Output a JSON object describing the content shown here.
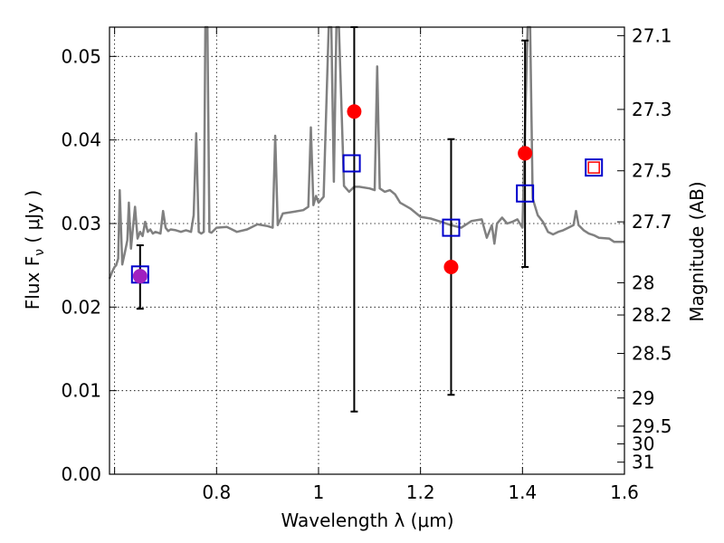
{
  "chart_data": {
    "type": "scatter",
    "xlabel": "Wavelength  λ (μm)",
    "ylabel": "Flux  F",
    "ylabel_sub": "ν",
    "ylabel_unit": "  ( μJy )",
    "y2label": "Magnitude (AB)",
    "xlim": [
      0.59,
      1.6
    ],
    "ylim": [
      0.0,
      0.0535
    ],
    "grid": true,
    "x_ticks": [
      {
        "value": 0.6,
        "label": ""
      },
      {
        "value": 0.8,
        "label": "0.8"
      },
      {
        "value": 1.0,
        "label": "1"
      },
      {
        "value": 1.2,
        "label": "1.2"
      },
      {
        "value": 1.4,
        "label": "1.4"
      },
      {
        "value": 1.6,
        "label": "1.6"
      }
    ],
    "y_ticks": [
      {
        "value": 0.0,
        "label": "0.00"
      },
      {
        "value": 0.01,
        "label": "0.01"
      },
      {
        "value": 0.02,
        "label": "0.02"
      },
      {
        "value": 0.03,
        "label": "0.03"
      },
      {
        "value": 0.04,
        "label": "0.04"
      },
      {
        "value": 0.05,
        "label": "0.05"
      }
    ],
    "y2_ticks": [
      {
        "mag": 27.1,
        "label": "27.1"
      },
      {
        "mag": 27.3,
        "label": "27.3"
      },
      {
        "mag": 27.5,
        "label": "27.5"
      },
      {
        "mag": 27.7,
        "label": "27.7"
      },
      {
        "mag": 28.0,
        "label": "28"
      },
      {
        "mag": 28.2,
        "label": "28.2"
      },
      {
        "mag": 28.5,
        "label": "28.5"
      },
      {
        "mag": 29.0,
        "label": "29"
      },
      {
        "mag": 29.5,
        "label": "29.5"
      },
      {
        "mag": 30.0,
        "label": "30"
      },
      {
        "mag": 31.0,
        "label": "31"
      }
    ],
    "colors": {
      "spectrum": "#808080",
      "observed": "#ff0000",
      "model": "#0000cc",
      "errorbar": "#000000",
      "overlap": "#a020c0"
    },
    "spectrum": {
      "x": [
        0.59,
        0.595,
        0.6,
        0.603,
        0.607,
        0.61,
        0.615,
        0.62,
        0.625,
        0.628,
        0.632,
        0.636,
        0.64,
        0.645,
        0.65,
        0.655,
        0.66,
        0.665,
        0.67,
        0.675,
        0.68,
        0.69,
        0.695,
        0.7,
        0.705,
        0.71,
        0.72,
        0.73,
        0.74,
        0.75,
        0.755,
        0.76,
        0.765,
        0.77,
        0.775,
        0.778,
        0.782,
        0.786,
        0.79,
        0.8,
        0.82,
        0.84,
        0.86,
        0.88,
        0.9,
        0.91,
        0.915,
        0.92,
        0.925,
        0.93,
        0.95,
        0.97,
        0.98,
        0.985,
        0.99,
        0.995,
        1.0,
        1.01,
        1.02,
        1.025,
        1.03,
        1.035,
        1.04,
        1.05,
        1.06,
        1.07,
        1.08,
        1.1,
        1.11,
        1.115,
        1.12,
        1.13,
        1.14,
        1.15,
        1.16,
        1.18,
        1.2,
        1.22,
        1.24,
        1.26,
        1.28,
        1.3,
        1.32,
        1.33,
        1.34,
        1.345,
        1.35,
        1.36,
        1.37,
        1.38,
        1.39,
        1.4,
        1.41,
        1.415,
        1.42,
        1.43,
        1.44,
        1.45,
        1.46,
        1.47,
        1.48,
        1.49,
        1.5,
        1.505,
        1.51,
        1.52,
        1.53,
        1.54,
        1.55,
        1.57,
        1.58,
        1.6
      ],
      "y": [
        0.0234,
        0.0242,
        0.0248,
        0.025,
        0.0258,
        0.034,
        0.0251,
        0.0265,
        0.028,
        0.0325,
        0.027,
        0.0295,
        0.032,
        0.0282,
        0.029,
        0.0285,
        0.0302,
        0.029,
        0.0293,
        0.0288,
        0.029,
        0.0288,
        0.0315,
        0.0295,
        0.0291,
        0.0293,
        0.0292,
        0.029,
        0.0292,
        0.029,
        0.031,
        0.0408,
        0.029,
        0.0288,
        0.029,
        0.0535,
        0.0535,
        0.029,
        0.0289,
        0.0295,
        0.0296,
        0.029,
        0.0293,
        0.0299,
        0.0297,
        0.0295,
        0.0405,
        0.0298,
        0.0305,
        0.0312,
        0.0314,
        0.0316,
        0.032,
        0.0415,
        0.0322,
        0.0333,
        0.0325,
        0.0332,
        0.0535,
        0.0535,
        0.035,
        0.0535,
        0.0535,
        0.0345,
        0.0338,
        0.0344,
        0.0344,
        0.0342,
        0.034,
        0.0488,
        0.0342,
        0.0338,
        0.034,
        0.0335,
        0.0325,
        0.0318,
        0.0308,
        0.0306,
        0.0302,
        0.0298,
        0.0295,
        0.0303,
        0.0305,
        0.0283,
        0.0298,
        0.0276,
        0.03,
        0.0307,
        0.03,
        0.0302,
        0.0305,
        0.0295,
        0.0535,
        0.0535,
        0.033,
        0.031,
        0.0302,
        0.029,
        0.0287,
        0.029,
        0.0292,
        0.0295,
        0.0298,
        0.0315,
        0.0298,
        0.0292,
        0.0288,
        0.0286,
        0.0283,
        0.0282,
        0.0278,
        0.0278
      ]
    },
    "series": [
      {
        "points": [
          {
            "x": 1.07,
            "y": 0.0434,
            "yerr_low": 0.0075,
            "yerr_high": 0.0535
          },
          {
            "x": 1.26,
            "y": 0.0248,
            "yerr_low": 0.0095,
            "yerr_high": 0.0401
          },
          {
            "x": 1.405,
            "y": 0.0384,
            "yerr_low": 0.0248,
            "yerr_high": 0.0519
          },
          {
            "x": 1.54,
            "y": 0.0367,
            "yerr_low": null,
            "yerr_high": null
          }
        ]
      },
      {
        "points": [
          {
            "x": 0.65,
            "y": 0.0239
          },
          {
            "x": 1.065,
            "y": 0.0372
          },
          {
            "x": 1.26,
            "y": 0.0295
          },
          {
            "x": 1.405,
            "y": 0.0336
          },
          {
            "x": 1.54,
            "y": 0.0367
          }
        ]
      },
      {
        "points": [
          {
            "x": 0.65,
            "y": 0.0237,
            "yerr_low": 0.0198,
            "yerr_high": 0.0274
          }
        ]
      }
    ]
  }
}
